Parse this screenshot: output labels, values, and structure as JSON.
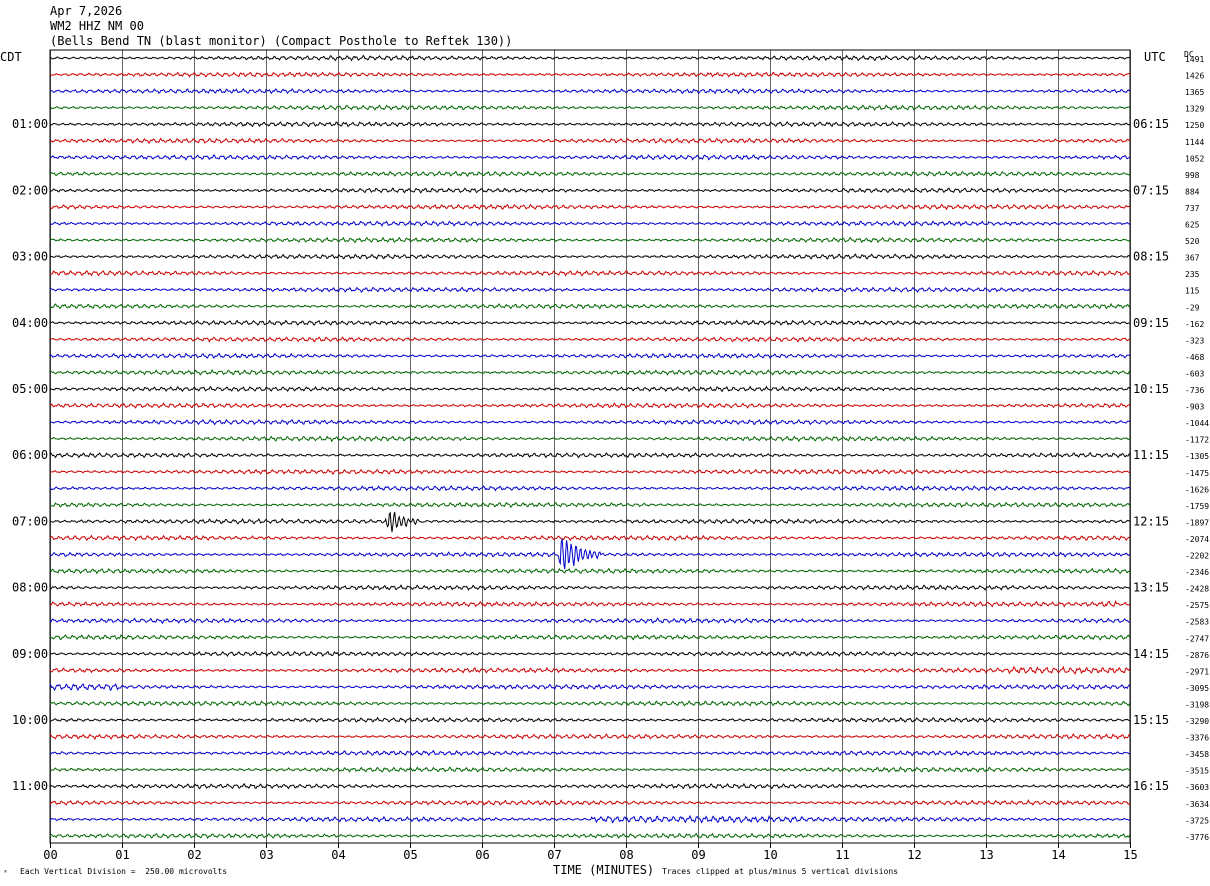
{
  "header": {
    "date": "Apr 7,2026",
    "station": "WM2 HHZ NM 00",
    "site": "(Bells Bend TN (blast monitor) (Compact Posthole to Reftek 130))"
  },
  "left_timezone": "CDT",
  "right_timezone": "UTC",
  "dc_label": "DC",
  "footer": {
    "scale": "Each Vertical Division =  250.00 microvolts",
    "xlabel": "TIME (MINUTES)",
    "clip": "Traces clipped at plus/minus 5 vertical divisions"
  },
  "colors": {
    "trace_cycle": [
      "#000000",
      "#cc0000",
      "#0000cc",
      "#006600"
    ],
    "grid": "#000000"
  },
  "chart_data": {
    "type": "line",
    "title": "",
    "xlabel": "TIME (MINUTES)",
    "ylabel": "",
    "xlim": [
      0,
      15
    ],
    "x_ticks": [
      "00",
      "01",
      "02",
      "03",
      "04",
      "05",
      "06",
      "07",
      "08",
      "09",
      "10",
      "11",
      "12",
      "13",
      "14",
      "15"
    ],
    "left_time_labels": [
      "01:00",
      "02:00",
      "03:00",
      "04:00",
      "05:00",
      "06:00",
      "07:00",
      "08:00",
      "09:00",
      "10:00",
      "11:00"
    ],
    "right_time_labels": [
      "06:15",
      "07:15",
      "08:15",
      "09:15",
      "10:15",
      "11:15",
      "12:15",
      "13:15",
      "14:15",
      "15:15",
      "16:15"
    ],
    "trace_count": 48,
    "dc_offsets": [
      "1491",
      "1426",
      "1365",
      "1329",
      "1250",
      "1144",
      "1052",
      "998",
      "884",
      "737",
      "625",
      "520",
      "367",
      "235",
      "115",
      "-29",
      "-162",
      "-323",
      "-468",
      "-603",
      "-736",
      "-903",
      "-1044",
      "-1172",
      "-1305",
      "-1475",
      "-1626",
      "-1759",
      "-1897",
      "-2074",
      "-2202",
      "-2346",
      "-2428",
      "-2575",
      "-2583",
      "-2747",
      "-2876",
      "-2971",
      "-3095",
      "-3198",
      "-3290",
      "-3376",
      "-3458",
      "-3515",
      "-3603",
      "-3634",
      "-3725",
      "-3776"
    ],
    "events": [
      {
        "trace": 28,
        "minute": 4.7,
        "duration_min": 0.45,
        "amplitude_div": 1.6
      },
      {
        "trace": 30,
        "minute": 7.1,
        "duration_min": 0.55,
        "amplitude_div": 2.4
      }
    ],
    "noisy_segments": [
      {
        "trace": 33,
        "from_min": 14.6,
        "to_min": 14.8
      },
      {
        "trace": 37,
        "from_min": 13.3,
        "to_min": 15.0
      },
      {
        "trace": 38,
        "from_min": 0.0,
        "to_min": 1.0
      },
      {
        "trace": 46,
        "from_min": 7.5,
        "to_min": 10.5
      }
    ]
  }
}
